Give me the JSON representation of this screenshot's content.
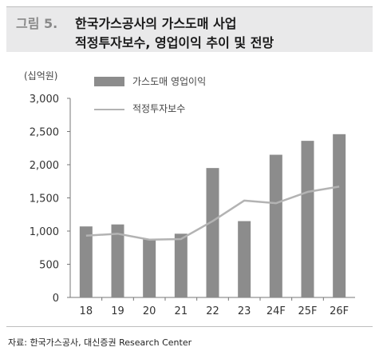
{
  "header": {
    "figure_label": "그림 5.",
    "title_line1": "한국가스공사의 가스도매 사업",
    "title_line2": "적정투자보수, 영업이익 추이 및 전망"
  },
  "unit_label": "(십억원)",
  "source": "자료: 한국가스공사, 대신증권 Research Center",
  "colors": {
    "bar": "#8c8c8c",
    "line": "#b3b3b3",
    "header_bg": "#e9e9ea"
  },
  "chart_data": {
    "type": "bar",
    "categories": [
      "18",
      "19",
      "20",
      "21",
      "22",
      "23",
      "24F",
      "25F",
      "26F"
    ],
    "series": [
      {
        "name": "가스도매 영업이익",
        "type": "bar",
        "values": [
          1070,
          1100,
          880,
          960,
          1950,
          1150,
          2150,
          2360,
          2460
        ]
      },
      {
        "name": "적정투자보수",
        "type": "line",
        "values": [
          930,
          960,
          870,
          880,
          1150,
          1460,
          1420,
          1590,
          1670
        ]
      }
    ],
    "y_ticks": [
      "0",
      "500",
      "1,000",
      "1,500",
      "2,000",
      "2,500",
      "3,000"
    ],
    "ylim": [
      0,
      3000
    ],
    "legend_position": "top-left",
    "grid": false
  }
}
